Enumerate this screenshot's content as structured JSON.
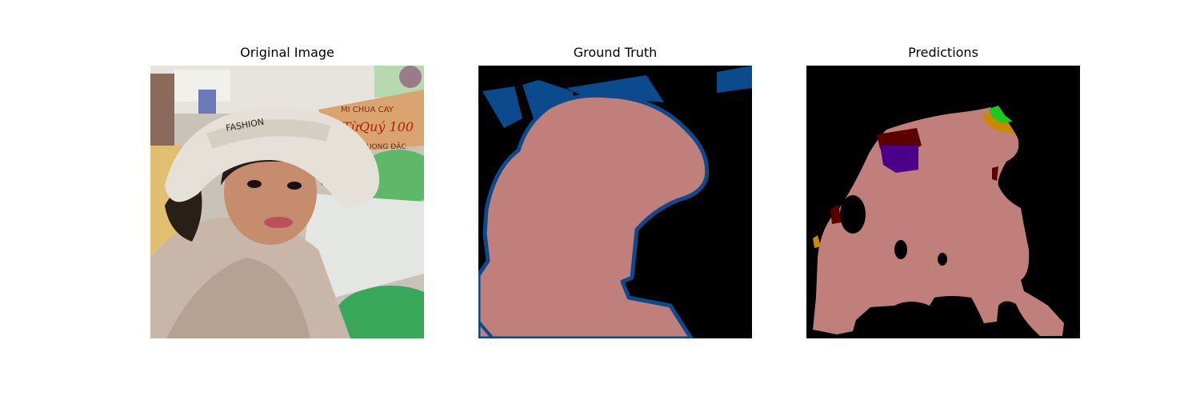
{
  "panels": {
    "original": {
      "title": "Original Image"
    },
    "ground_truth": {
      "title": "Ground Truth"
    },
    "predictions": {
      "title": "Predictions"
    }
  },
  "colors": {
    "background_class": "#000000",
    "person_class": "#c07f7a",
    "boundary_class": "#0b4a8c",
    "dark_red_class": "#5a0000",
    "purple_class": "#4a0088",
    "orange_class": "#c88a00",
    "green_class": "#1ec81e"
  },
  "box_text": [
    "MI CHUA CAY",
    "FASHION"
  ]
}
